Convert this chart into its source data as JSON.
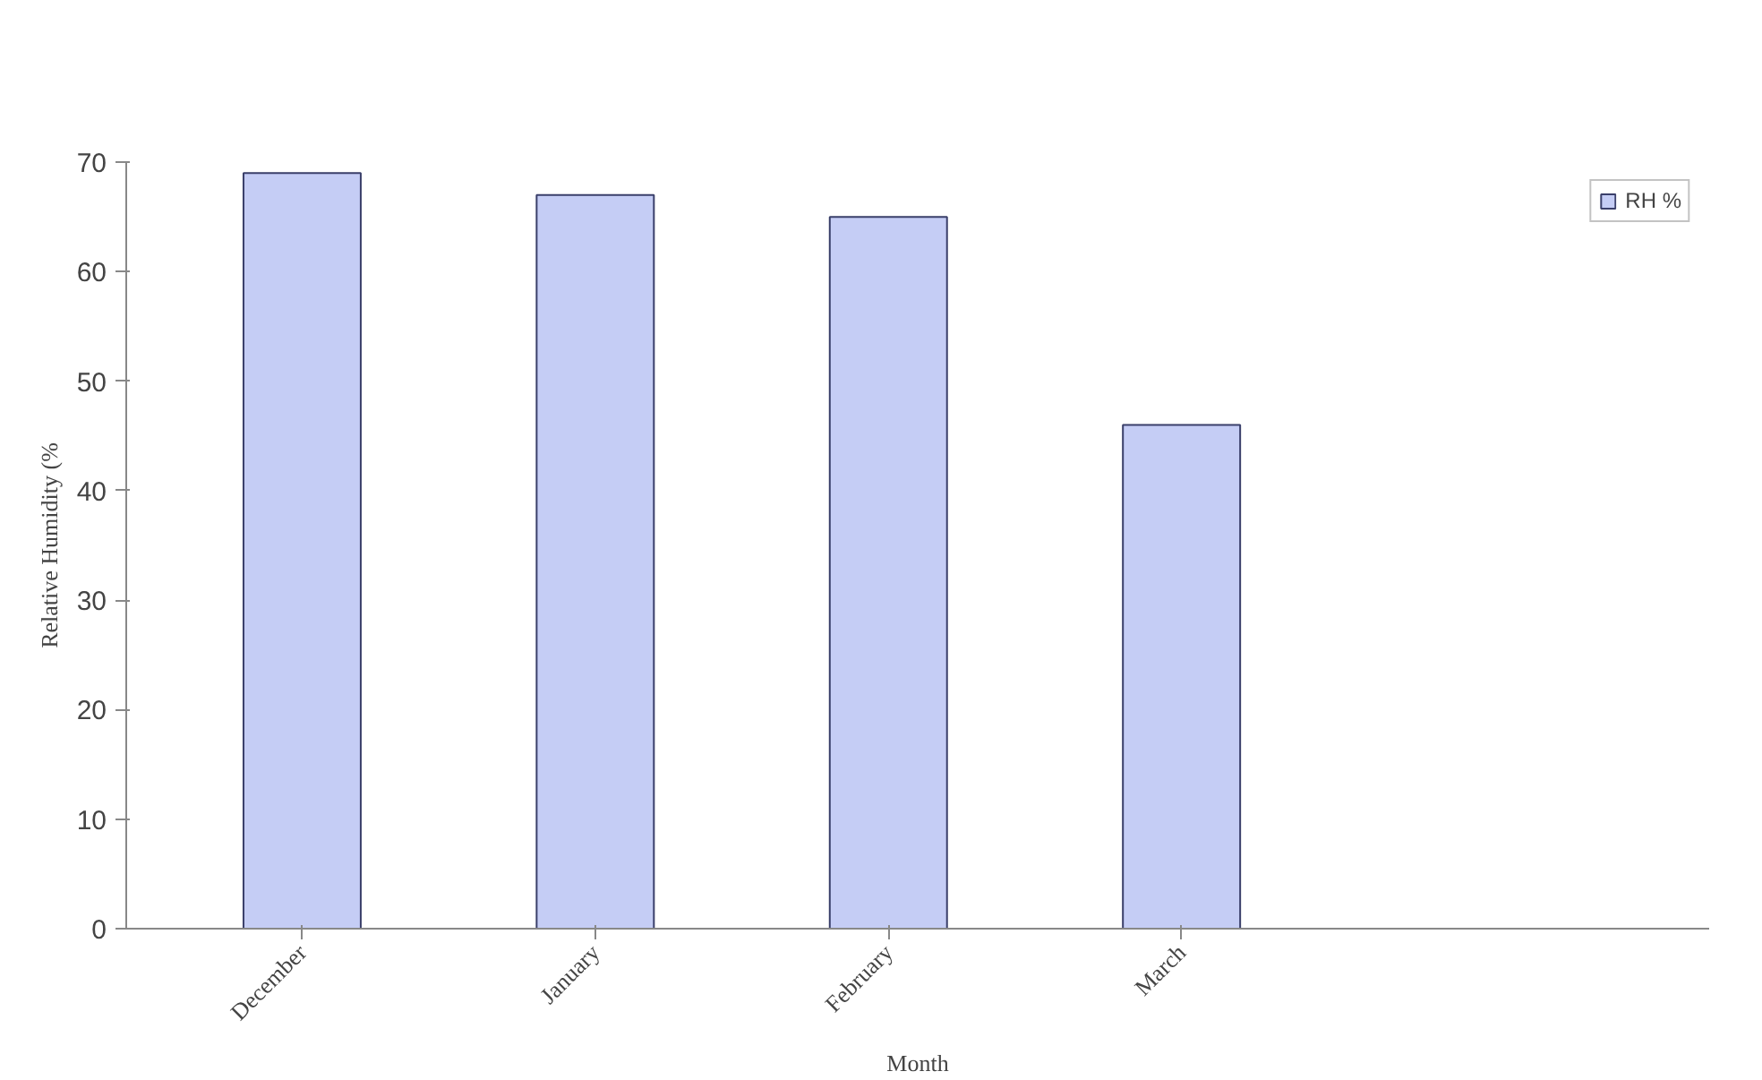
{
  "chart_data": {
    "type": "bar",
    "xlabel": "Month",
    "ylabel": "Relative Humidity (%",
    "categories": [
      "December",
      "January",
      "February",
      "March"
    ],
    "series": [
      {
        "name": "RH %",
        "color": "#c5cdf5",
        "values": [
          69,
          67,
          65,
          46
        ]
      }
    ],
    "ylim": [
      0,
      70
    ],
    "yticks": [
      0,
      10,
      20,
      30,
      40,
      50,
      60,
      70
    ],
    "grid": false,
    "legend": "top right"
  }
}
